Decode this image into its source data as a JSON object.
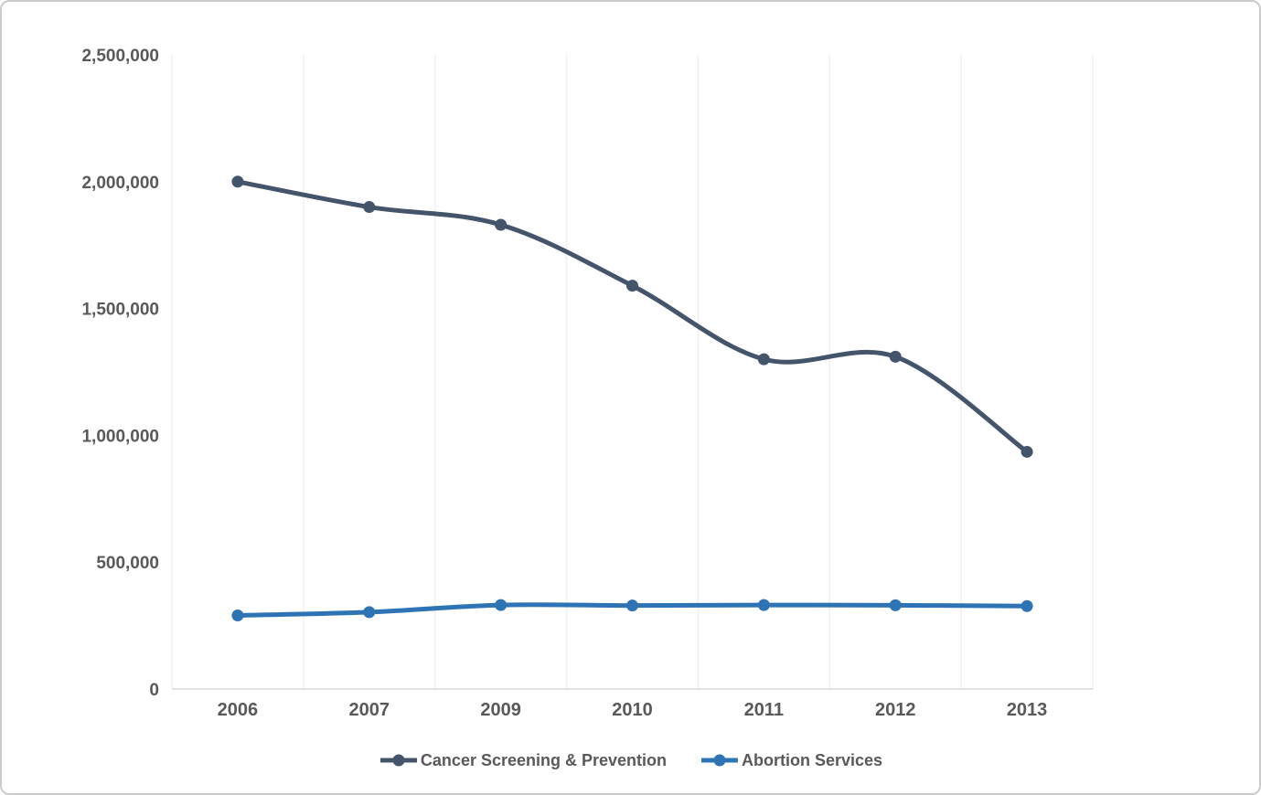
{
  "page": {
    "background": "#ffffff",
    "frame_border_color": "#cbcbcb"
  },
  "chart_data": {
    "type": "line",
    "title": "",
    "xlabel": "",
    "ylabel": "",
    "categories": [
      "2006",
      "2007",
      "2009",
      "2010",
      "2011",
      "2012",
      "2013"
    ],
    "series": [
      {
        "name": "Cancer Screening & Prevention",
        "color": "#44546A",
        "smooth": true,
        "values": [
          2000000,
          1900000,
          1830000,
          1590000,
          1300000,
          1310000,
          935000
        ]
      },
      {
        "name": "Abortion Services",
        "color": "#2E74B5",
        "smooth": true,
        "values": [
          290000,
          303000,
          331000,
          329000,
          331000,
          330000,
          327000
        ]
      }
    ],
    "ylim": [
      0,
      2500000
    ],
    "ytick_interval": 500000,
    "ytick_labels": [
      "0",
      "500,000",
      "1,000,000",
      "1,500,000",
      "2,000,000",
      "2,500,000"
    ],
    "grid": "vertical",
    "gridline_color": "#f1f1f1",
    "axis_line_color": "#d9d9d9",
    "axis_label_color": "#595959",
    "legend_position": "bottom"
  }
}
